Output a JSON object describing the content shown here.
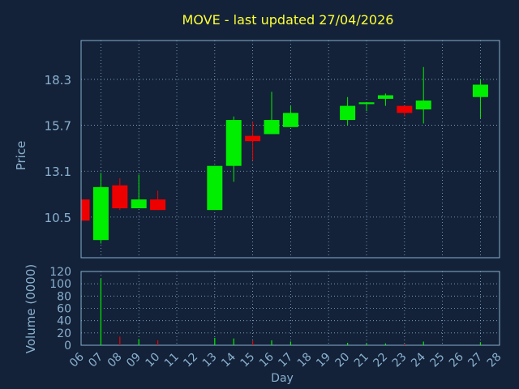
{
  "chart_data": {
    "type": "candlestick",
    "title": "MOVE - last updated 27/04/2026",
    "xlabel": "Day",
    "price_panel": {
      "ylabel": "Price",
      "y_ticks": [
        "10.5",
        "13.1",
        "15.7",
        "18.3"
      ],
      "ylim": [
        8.2,
        20.5
      ]
    },
    "volume_panel": {
      "ylabel": "Volume (0000)",
      "y_ticks": [
        "0",
        "20",
        "40",
        "60",
        "80",
        "100",
        "120"
      ],
      "ylim": [
        0,
        120
      ]
    },
    "x_tick_labels": [
      "06",
      "07",
      "08",
      "09",
      "10",
      "11",
      "12",
      "13",
      "14",
      "15",
      "16",
      "17",
      "18",
      "19",
      "20",
      "21",
      "22",
      "23",
      "24",
      "25",
      "26",
      "27",
      "28"
    ],
    "grid": true,
    "colors": {
      "background": "#132238",
      "plot_border": "#8ab0d0",
      "grid": "#8ab0d0",
      "title": "#ffff33",
      "axis_text": "#8ab0d0",
      "up": "#00ee00",
      "down": "#ee0000"
    },
    "candles": [
      {
        "day": "06",
        "open": 11.5,
        "high": 11.5,
        "low": 10.3,
        "close": 10.3,
        "volume": 0
      },
      {
        "day": "07",
        "open": 9.2,
        "high": 13.0,
        "low": 9.0,
        "close": 12.2,
        "volume": 108
      },
      {
        "day": "08",
        "open": 12.3,
        "high": 12.7,
        "low": 10.9,
        "close": 11.0,
        "volume": 14
      },
      {
        "day": "09",
        "open": 11.0,
        "high": 12.9,
        "low": 11.0,
        "close": 11.5,
        "volume": 10
      },
      {
        "day": "10",
        "open": 11.5,
        "high": 12.0,
        "low": 10.9,
        "close": 10.9,
        "volume": 8
      },
      {
        "day": "13",
        "open": 10.9,
        "high": 13.4,
        "low": 10.9,
        "close": 13.4,
        "volume": 12
      },
      {
        "day": "14",
        "open": 13.4,
        "high": 16.2,
        "low": 12.5,
        "close": 16.0,
        "volume": 11
      },
      {
        "day": "15",
        "open": 15.1,
        "high": 15.9,
        "low": 13.7,
        "close": 14.8,
        "volume": 7
      },
      {
        "day": "16",
        "open": 15.2,
        "high": 17.6,
        "low": 15.2,
        "close": 16.0,
        "volume": 8
      },
      {
        "day": "17",
        "open": 15.6,
        "high": 16.8,
        "low": 15.6,
        "close": 16.4,
        "volume": 6
      },
      {
        "day": "20",
        "open": 16.0,
        "high": 17.3,
        "low": 15.7,
        "close": 16.8,
        "volume": 4
      },
      {
        "day": "21",
        "open": 16.9,
        "high": 17.0,
        "low": 16.5,
        "close": 17.0,
        "volume": 3
      },
      {
        "day": "22",
        "open": 17.2,
        "high": 17.5,
        "low": 16.8,
        "close": 17.4,
        "volume": 3
      },
      {
        "day": "23",
        "open": 16.8,
        "high": 16.8,
        "low": 16.2,
        "close": 16.4,
        "volume": 2
      },
      {
        "day": "24",
        "open": 16.6,
        "high": 19.0,
        "low": 15.8,
        "close": 17.1,
        "volume": 6
      },
      {
        "day": "27",
        "open": 17.3,
        "high": 18.3,
        "low": 16.1,
        "close": 18.0,
        "volume": 5
      }
    ]
  }
}
